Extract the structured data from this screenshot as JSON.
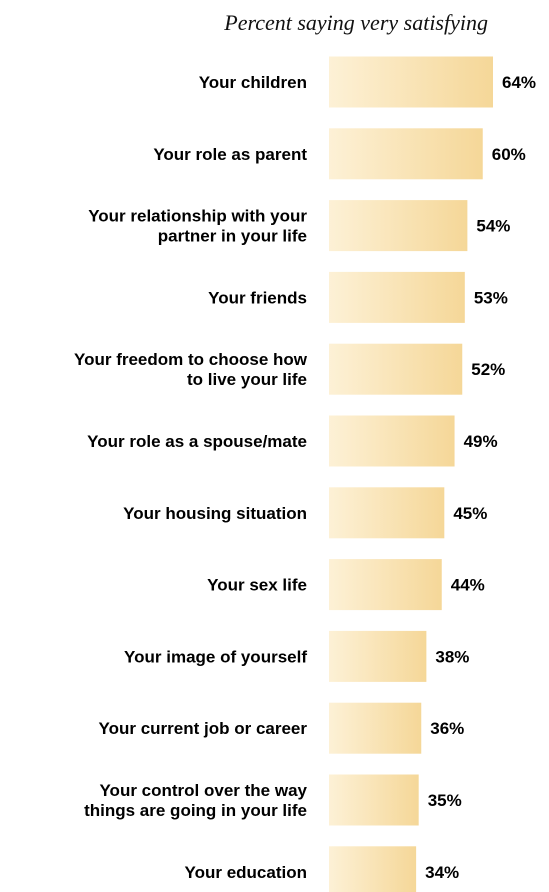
{
  "chart_data": {
    "type": "bar",
    "orientation": "horizontal",
    "title": "Percent saying very satisfying",
    "categories": [
      [
        "Your children"
      ],
      [
        "Your role as parent"
      ],
      [
        "Your relationship with your",
        "partner in your life"
      ],
      [
        "Your friends"
      ],
      [
        "Your freedom to choose how",
        "to live your life"
      ],
      [
        "Your role as a spouse/mate"
      ],
      [
        "Your housing situation"
      ],
      [
        "Your sex life"
      ],
      [
        "Your image of yourself"
      ],
      [
        "Your current job or career"
      ],
      [
        "Your control over the way",
        "things are going in your life"
      ],
      [
        "Your education"
      ]
    ],
    "values": [
      64,
      60,
      54,
      53,
      52,
      49,
      45,
      44,
      38,
      36,
      35,
      34
    ],
    "value_labels": [
      "64%",
      "60%",
      "54%",
      "53%",
      "52%",
      "49%",
      "45%",
      "44%",
      "38%",
      "36%",
      "35%",
      "34%"
    ],
    "xlim": [
      0,
      64
    ],
    "grid": false,
    "bar_color_light": "#fdf1d6",
    "bar_color_dark": "#f5d798"
  }
}
